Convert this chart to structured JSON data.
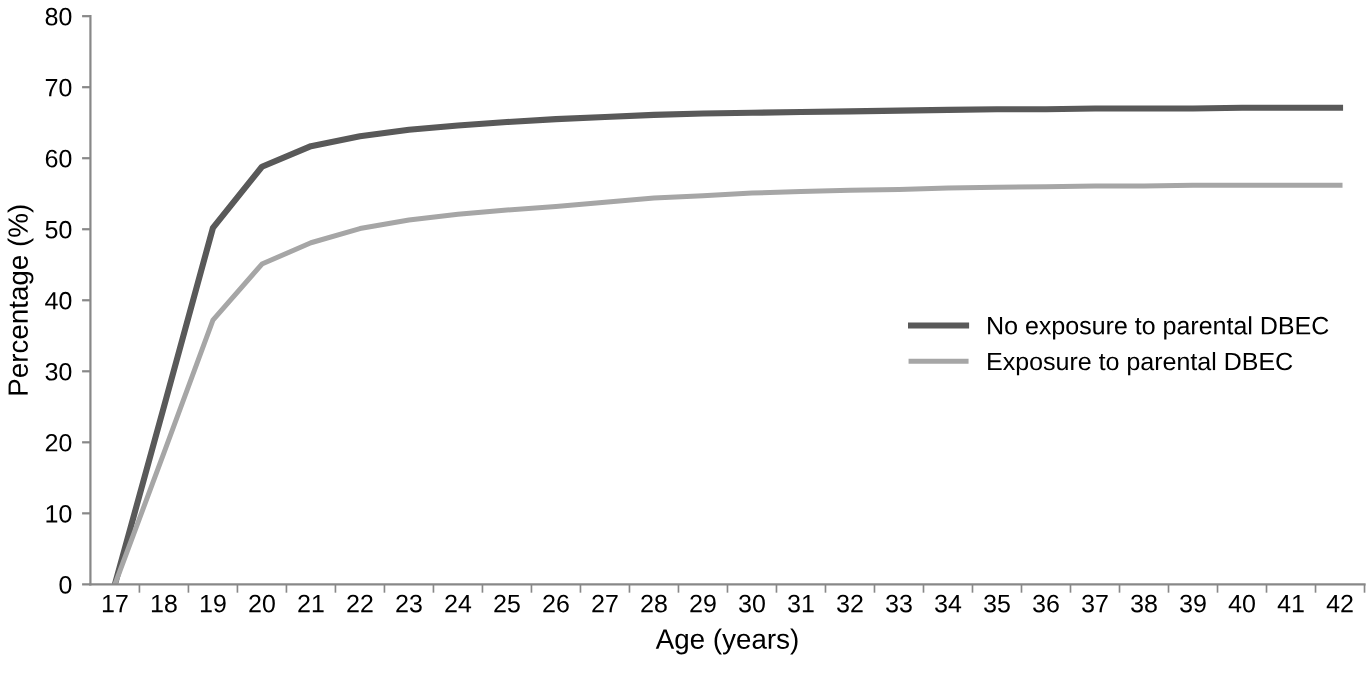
{
  "chart_data": {
    "type": "line",
    "xlabel": "Age (years)",
    "ylabel": "Percentage (%)",
    "categories": [
      "17",
      "18",
      "19",
      "20",
      "21",
      "22",
      "23",
      "24",
      "25",
      "26",
      "27",
      "28",
      "29",
      "30",
      "31",
      "32",
      "33",
      "34",
      "35",
      "36",
      "37",
      "38",
      "39",
      "40",
      "41",
      "42"
    ],
    "series": [
      {
        "name": "No exposure to parental DBEC",
        "color": "#595959",
        "values": [
          0,
          25,
          50.2,
          58.8,
          61.7,
          63.1,
          64.0,
          64.6,
          65.1,
          65.5,
          65.8,
          66.1,
          66.3,
          66.4,
          66.5,
          66.6,
          66.7,
          66.8,
          66.9,
          66.9,
          67.0,
          67.0,
          67.0,
          67.1,
          67.1,
          67.1
        ]
      },
      {
        "name": "Exposure to parental DBEC",
        "color": "#a6a6a6",
        "values": [
          0,
          18.5,
          37.2,
          45.1,
          48.1,
          50.1,
          51.3,
          52.1,
          52.7,
          53.2,
          53.8,
          54.4,
          54.7,
          55.1,
          55.3,
          55.5,
          55.6,
          55.8,
          55.9,
          56.0,
          56.1,
          56.1,
          56.2,
          56.2,
          56.2,
          56.2
        ]
      }
    ],
    "ylim": [
      0,
      80
    ],
    "yticks": [
      0,
      10,
      20,
      30,
      40,
      50,
      60,
      70,
      80
    ],
    "grid": false,
    "legend": "right",
    "marker": "none",
    "line_style": "solid"
  }
}
